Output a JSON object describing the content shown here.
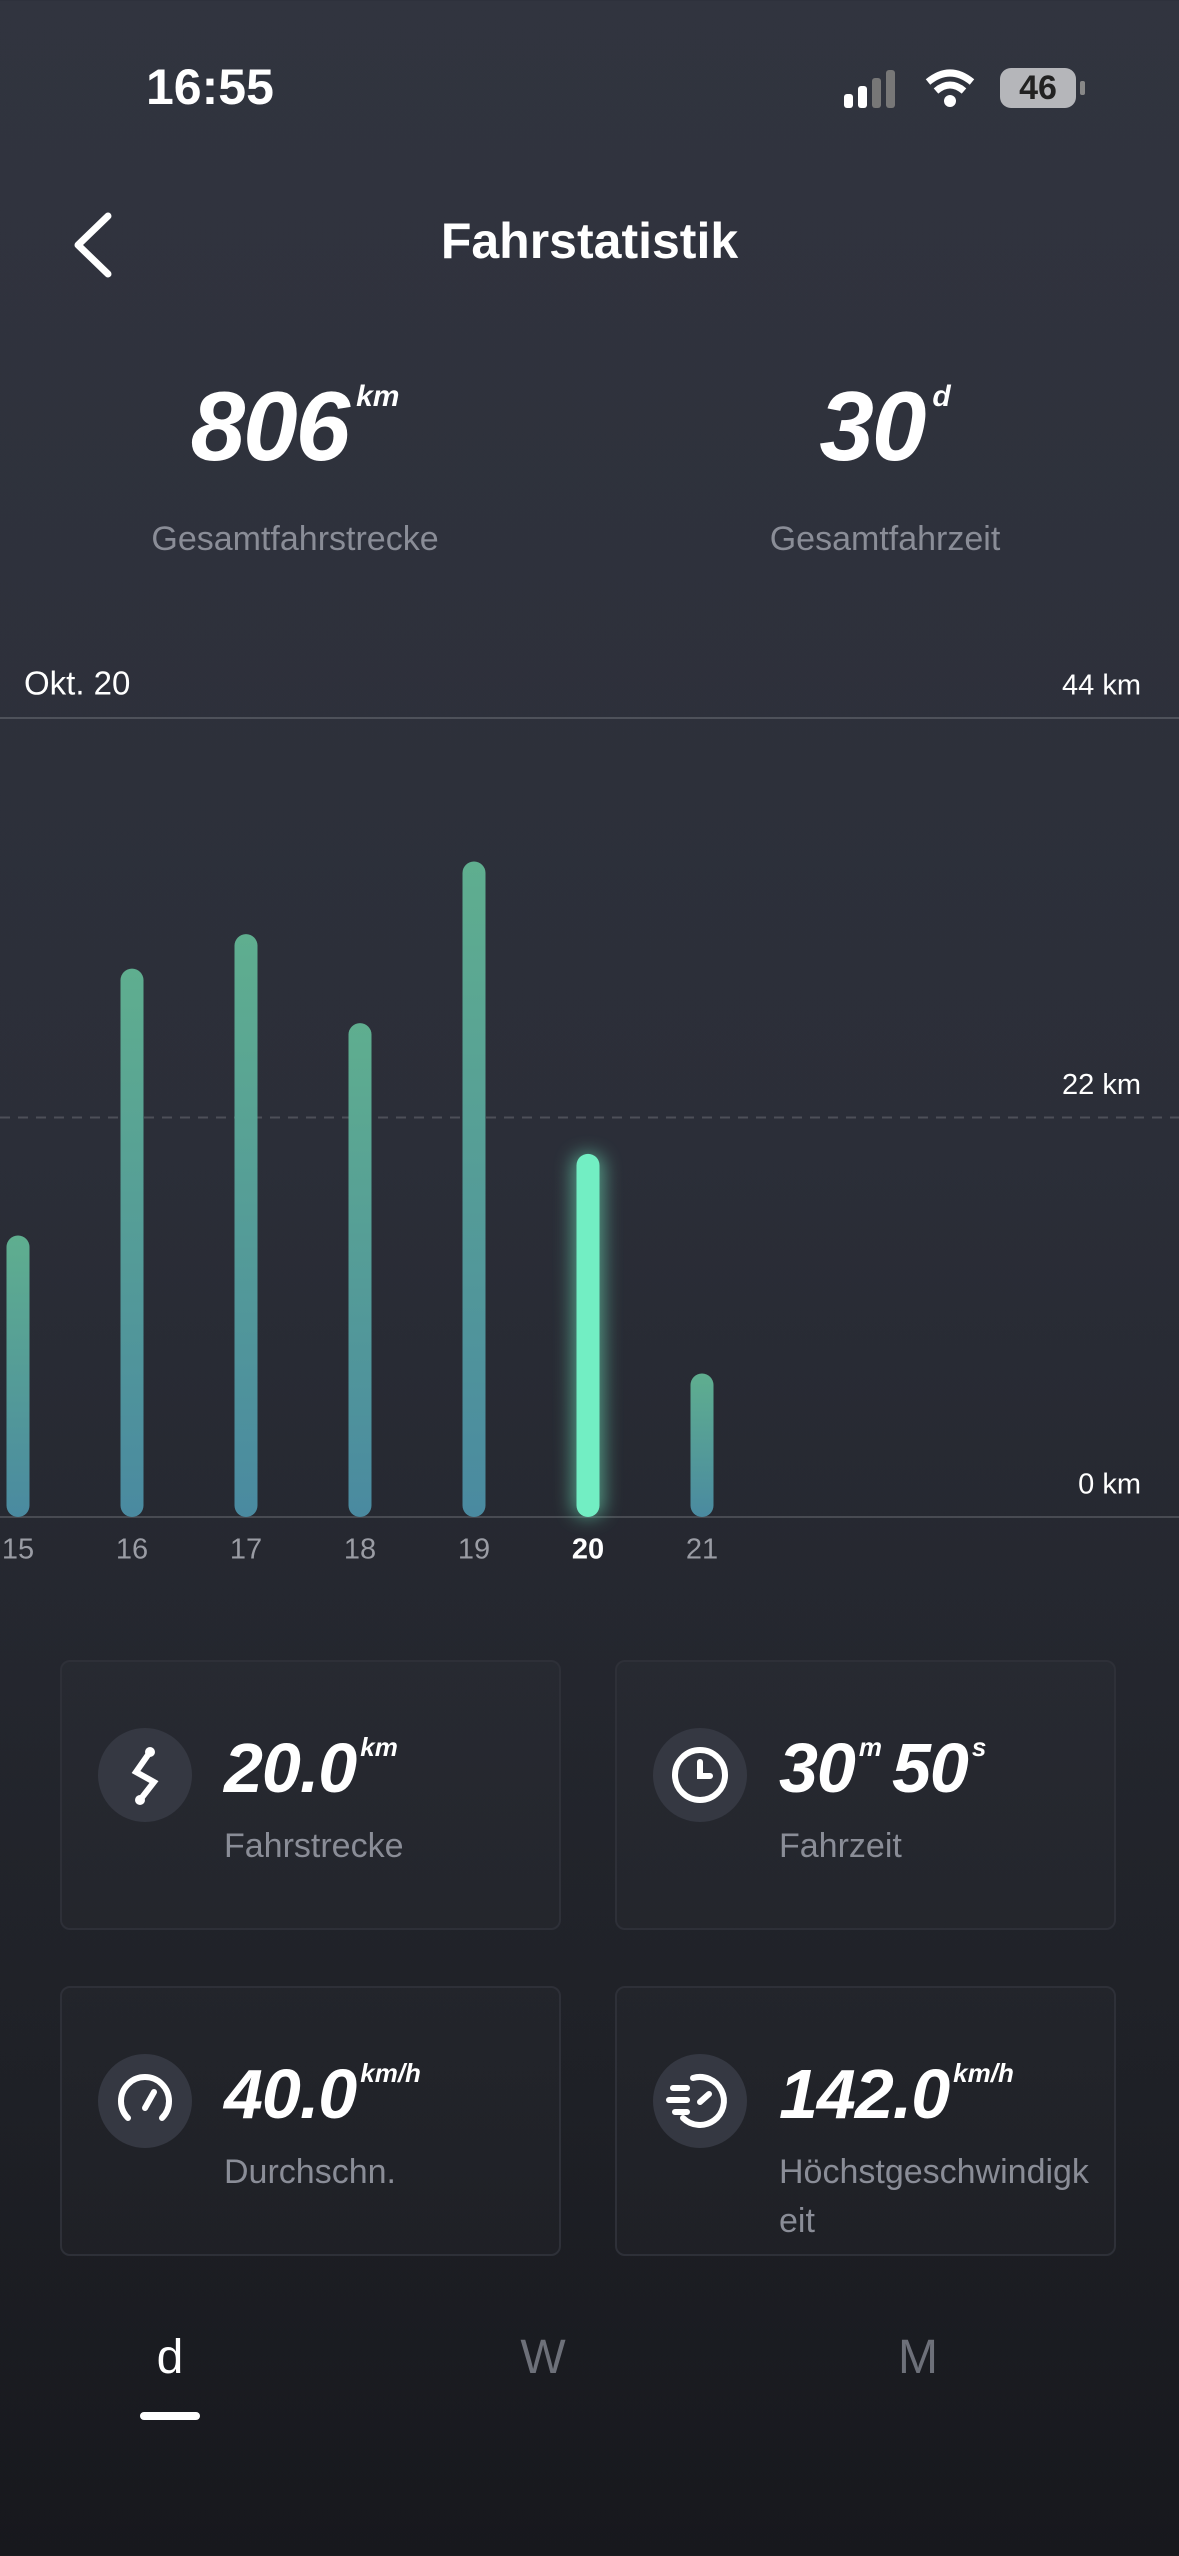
{
  "status": {
    "time": "16:55",
    "battery": "46"
  },
  "header": {
    "title": "Fahrstatistik"
  },
  "summary": [
    {
      "value": "806",
      "unit": "km",
      "label": "Gesamtfahrstrecke"
    },
    {
      "value": "30",
      "unit": "d",
      "label": "Gesamtfahrzeit"
    }
  ],
  "chart_data": {
    "type": "bar",
    "subtitle": "Okt. 20",
    "categories": [
      "15",
      "16",
      "17",
      "18",
      "19",
      "20",
      "21"
    ],
    "values": [
      15.5,
      30.2,
      32.1,
      27.2,
      36.1,
      20,
      7.9
    ],
    "color": "#5aa690",
    "highlight_color": "#72eec3",
    "selected": 5,
    "ylim": [
      0,
      44
    ],
    "yticks": [
      {
        "value": 0,
        "label": "0 km"
      },
      {
        "value": 22,
        "label": "22 km"
      },
      {
        "value": 44,
        "label": "44 km"
      }
    ],
    "grid": true
  },
  "cards": [
    {
      "parts": [
        {
          "value": "20.0",
          "unit": "km"
        }
      ],
      "label": "Fahrstrecke"
    },
    {
      "parts": [
        {
          "value": "30",
          "unit": "m"
        },
        {
          "value": "50",
          "unit": "s"
        }
      ],
      "label": "Fahrzeit"
    },
    {
      "parts": [
        {
          "value": "40.0",
          "unit": "km/h"
        }
      ],
      "label": "Durchschn."
    },
    {
      "parts": [
        {
          "value": "142.0",
          "unit": "km/h"
        }
      ],
      "label": "Höchstgeschwindigkeit"
    }
  ],
  "tabs": {
    "items": [
      "d",
      "W",
      "M"
    ],
    "active": 0
  }
}
